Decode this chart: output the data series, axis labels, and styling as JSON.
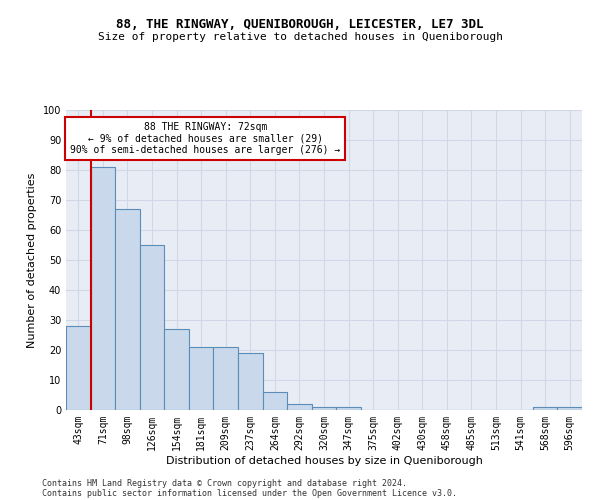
{
  "title1": "88, THE RINGWAY, QUENIBOROUGH, LEICESTER, LE7 3DL",
  "title2": "Size of property relative to detached houses in Queniborough",
  "xlabel": "Distribution of detached houses by size in Queniborough",
  "ylabel": "Number of detached properties",
  "footer1": "Contains HM Land Registry data © Crown copyright and database right 2024.",
  "footer2": "Contains public sector information licensed under the Open Government Licence v3.0.",
  "annotation_line1": "88 THE RINGWAY: 72sqm",
  "annotation_line2": "← 9% of detached houses are smaller (29)",
  "annotation_line3": "90% of semi-detached houses are larger (276) →",
  "bar_color": "#c9d9eb",
  "bar_edge_color": "#5b8db8",
  "vline_color": "#cc0000",
  "categories": [
    "43sqm",
    "71sqm",
    "98sqm",
    "126sqm",
    "154sqm",
    "181sqm",
    "209sqm",
    "237sqm",
    "264sqm",
    "292sqm",
    "320sqm",
    "347sqm",
    "375sqm",
    "402sqm",
    "430sqm",
    "458sqm",
    "485sqm",
    "513sqm",
    "541sqm",
    "568sqm",
    "596sqm"
  ],
  "values": [
    28,
    81,
    67,
    55,
    27,
    21,
    21,
    19,
    6,
    2,
    1,
    1,
    0,
    0,
    0,
    0,
    0,
    0,
    0,
    1,
    1
  ],
  "ylim": [
    0,
    100
  ],
  "yticks": [
    0,
    10,
    20,
    30,
    40,
    50,
    60,
    70,
    80,
    90,
    100
  ],
  "grid_color": "#d0d8e8",
  "plot_bg": "#e8edf5",
  "title1_fontsize": 9,
  "title2_fontsize": 8,
  "ylabel_fontsize": 8,
  "xlabel_fontsize": 8,
  "tick_fontsize": 7,
  "footer_fontsize": 6,
  "annot_fontsize": 7
}
